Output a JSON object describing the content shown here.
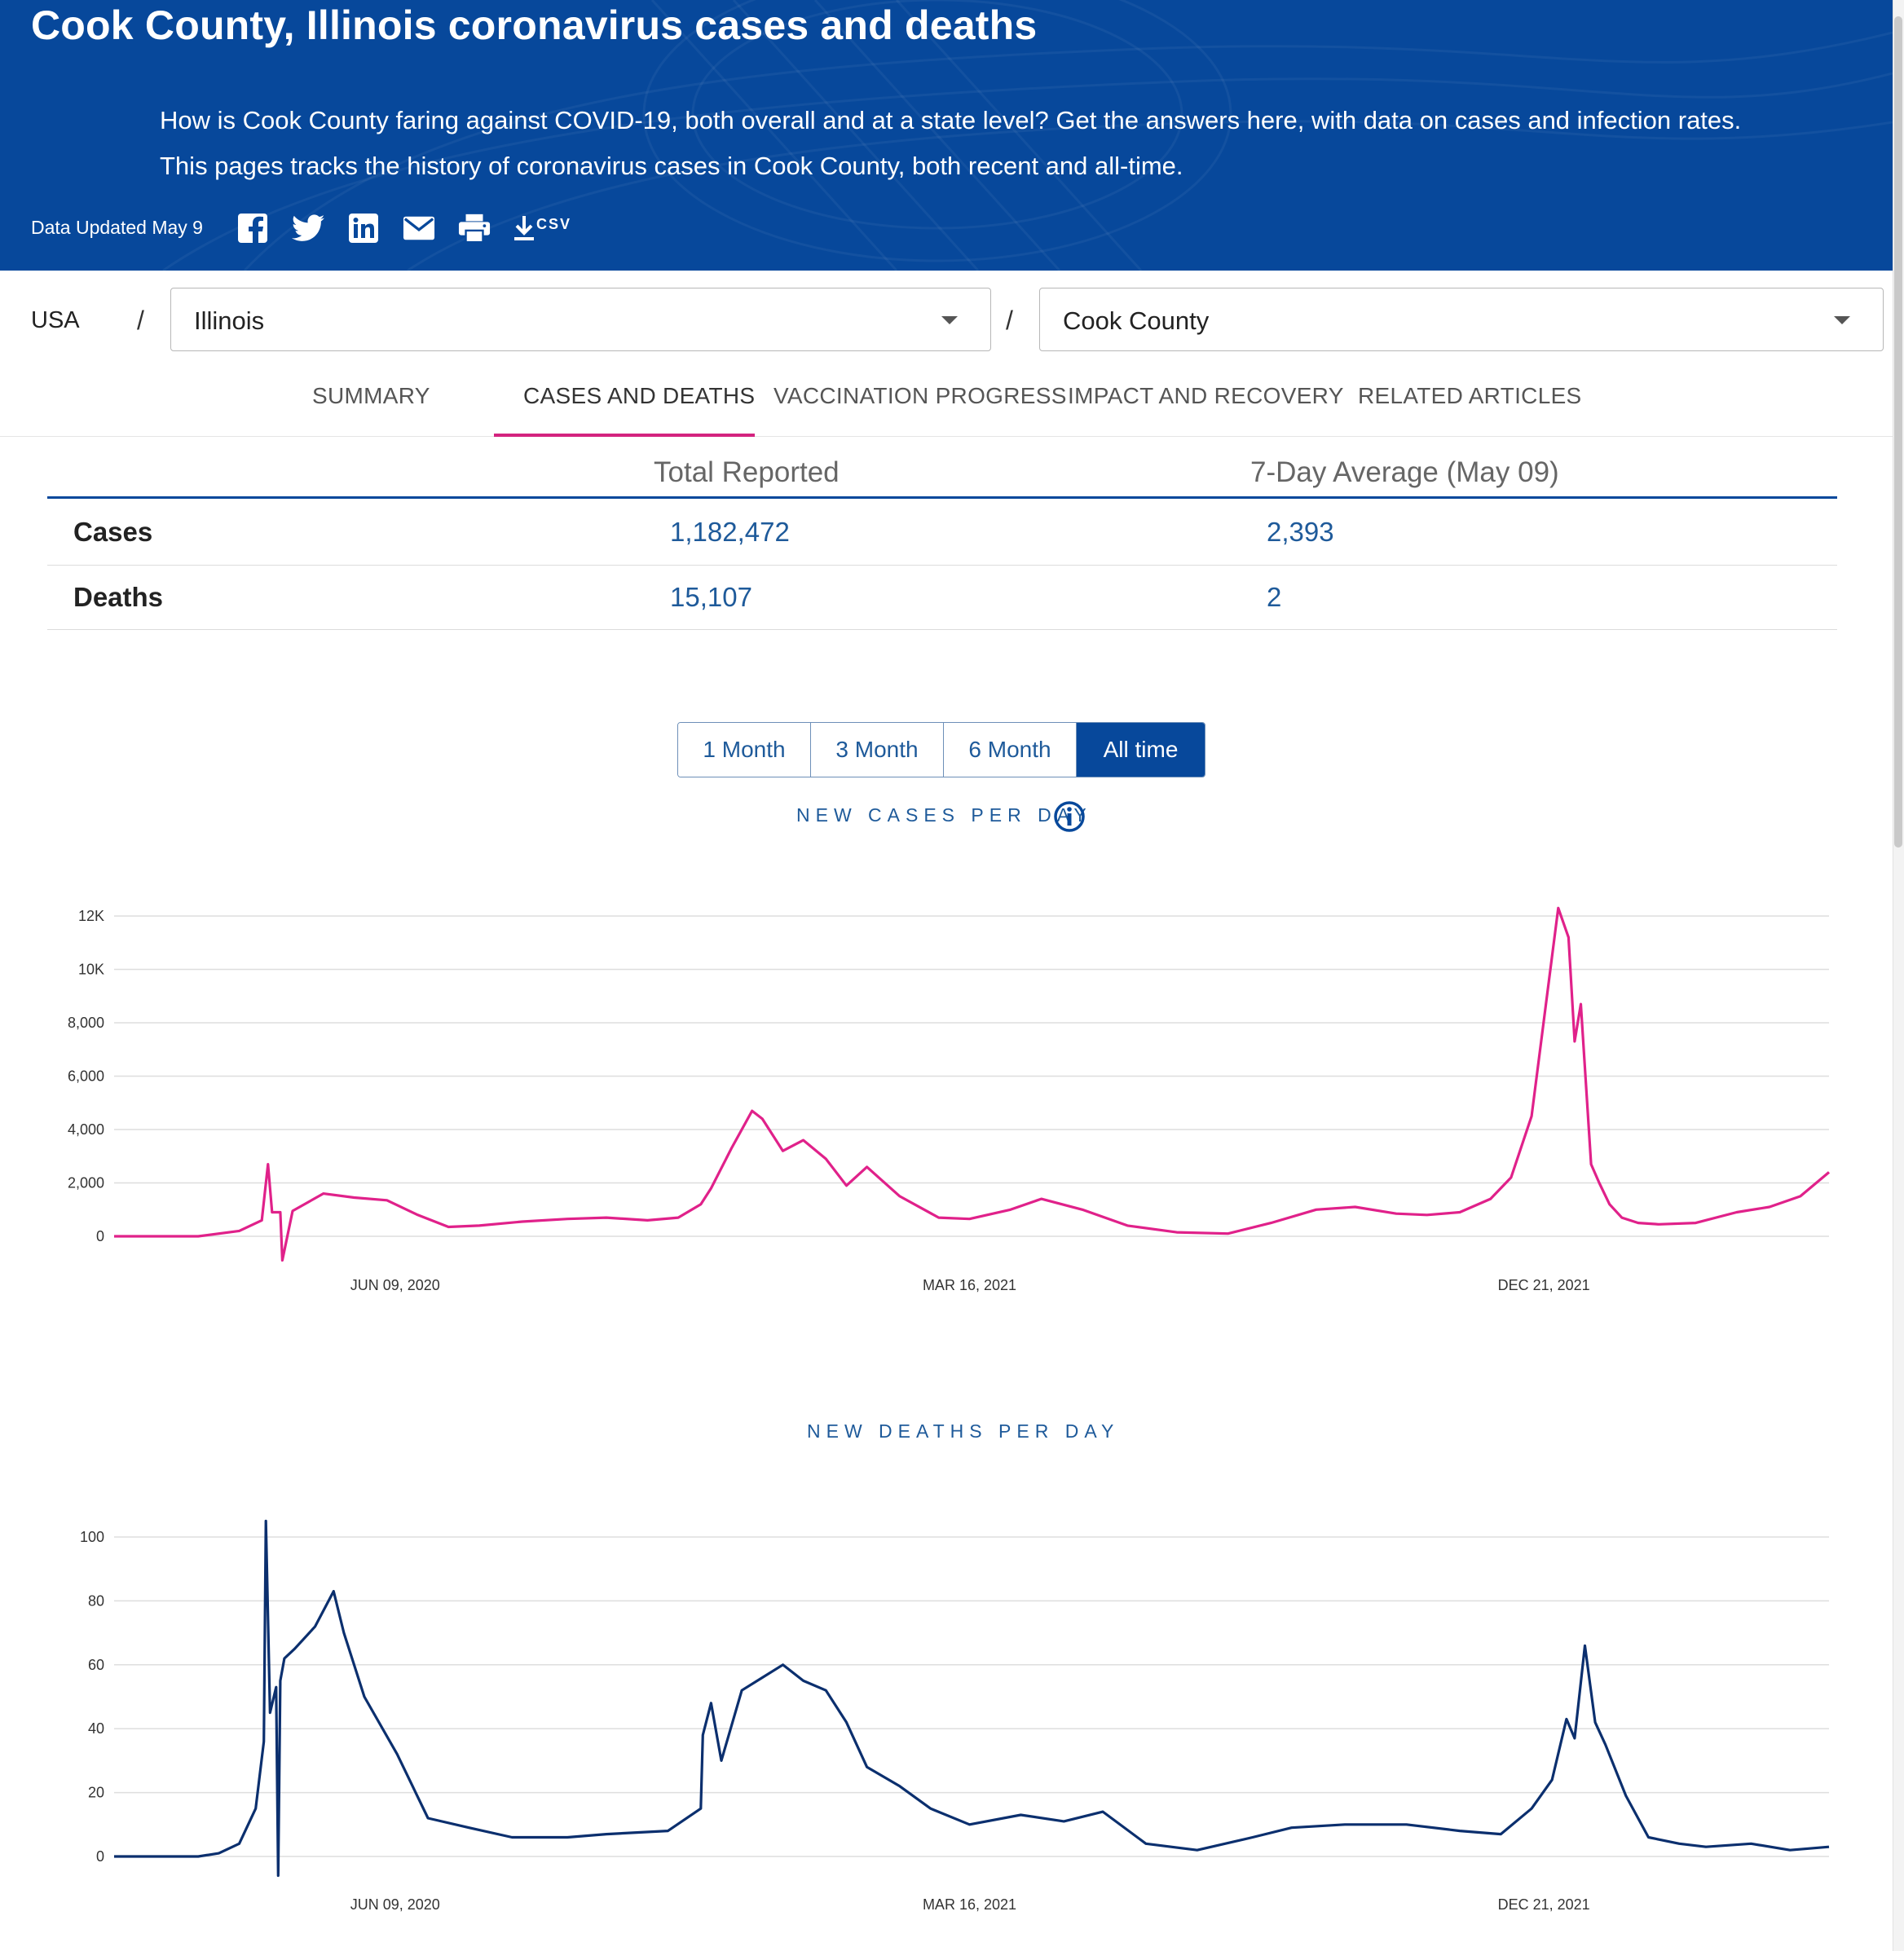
{
  "header": {
    "title": "Cook County, Illinois coronavirus cases and deaths",
    "lede": "How is Cook County faring against COVID-19, both overall and at a state level? Get the answers here, with data on cases and infection rates. This pages tracks the history of coronavirus cases in Cook County, both recent and all-time.",
    "updated": "Data Updated May 9",
    "share_icons": [
      "facebook-icon",
      "twitter-icon",
      "linkedin-icon",
      "email-icon",
      "print-icon",
      "download-icon"
    ],
    "csv_label": "CSV"
  },
  "location": {
    "country": "USA",
    "separator": "/",
    "state": "Illinois",
    "county": "Cook County"
  },
  "tabs": [
    {
      "label": "SUMMARY"
    },
    {
      "label": "CASES AND DEATHS",
      "active": true
    },
    {
      "label": "VACCINATION PROGRESS"
    },
    {
      "label": "IMPACT AND RECOVERY"
    },
    {
      "label": "RELATED ARTICLES"
    }
  ],
  "summary": {
    "col_total": "Total Reported",
    "col_avg": "7-Day Average (May 09)",
    "rows": [
      {
        "label": "Cases",
        "total": "1,182,472",
        "avg": "2,393"
      },
      {
        "label": "Deaths",
        "total": "15,107",
        "avg": "2"
      }
    ]
  },
  "range_buttons": [
    {
      "label": "1 Month"
    },
    {
      "label": "3 Month"
    },
    {
      "label": "6 Month"
    },
    {
      "label": "All time",
      "active": true
    }
  ],
  "colors": {
    "brand": "#07489b",
    "accent": "#d4237f",
    "cases_line": "#e0218a",
    "deaths_line": "#0b2f6e",
    "link": "#1e5a9a"
  },
  "chart_data": [
    {
      "type": "line",
      "title": "NEW CASES PER DAY",
      "ylim": [
        0,
        12000
      ],
      "yticks": [
        0,
        2000,
        4000,
        6000,
        8000,
        10000,
        12000
      ],
      "ytick_labels": [
        "0",
        "2,000",
        "4,000",
        "6,000",
        "8,000",
        "10K",
        "12K"
      ],
      "xticks": [
        {
          "label": "JUN 09, 2020",
          "date": "2020-06-09"
        },
        {
          "label": "MAR 16, 2021",
          "date": "2021-03-16"
        },
        {
          "label": "DEC 21, 2021",
          "date": "2021-12-21"
        }
      ],
      "grid": true,
      "x_dates": [
        "2020-01-24",
        "2020-03-05",
        "2020-03-25",
        "2020-04-05",
        "2020-04-08",
        "2020-04-10",
        "2020-04-14",
        "2020-04-15",
        "2020-04-20",
        "2020-05-05",
        "2020-05-20",
        "2020-06-05",
        "2020-06-20",
        "2020-07-05",
        "2020-07-20",
        "2020-08-10",
        "2020-09-01",
        "2020-09-20",
        "2020-10-10",
        "2020-10-25",
        "2020-11-05",
        "2020-11-10",
        "2020-11-20",
        "2020-11-30",
        "2020-12-05",
        "2020-12-15",
        "2020-12-25",
        "2021-01-05",
        "2021-01-15",
        "2021-01-25",
        "2021-02-10",
        "2021-03-01",
        "2021-03-16",
        "2021-04-05",
        "2021-04-20",
        "2021-05-10",
        "2021-06-01",
        "2021-06-25",
        "2021-07-20",
        "2021-08-10",
        "2021-09-01",
        "2021-09-20",
        "2021-10-10",
        "2021-10-25",
        "2021-11-10",
        "2021-11-25",
        "2021-12-05",
        "2021-12-15",
        "2021-12-22",
        "2021-12-28",
        "2022-01-02",
        "2022-01-05",
        "2022-01-08",
        "2022-01-13",
        "2022-01-17",
        "2022-01-22",
        "2022-01-28",
        "2022-02-05",
        "2022-02-15",
        "2022-03-05",
        "2022-03-25",
        "2022-04-10",
        "2022-04-25",
        "2022-05-09"
      ],
      "values": [
        0,
        0,
        200,
        600,
        2700,
        900,
        900,
        -900,
        950,
        1600,
        1450,
        1350,
        800,
        350,
        400,
        550,
        650,
        700,
        600,
        700,
        1200,
        1800,
        3300,
        4700,
        4400,
        3200,
        3600,
        2900,
        1900,
        2600,
        1500,
        700,
        650,
        1000,
        1400,
        1000,
        400,
        150,
        100,
        500,
        1000,
        1100,
        850,
        800,
        900,
        1400,
        2200,
        4500,
        8700,
        12300,
        11200,
        7300,
        8700,
        2700,
        2000,
        1200,
        700,
        500,
        450,
        500,
        900,
        1100,
        1500,
        2400
      ]
    },
    {
      "type": "line",
      "title": "NEW DEATHS PER DAY",
      "ylim": [
        0,
        105
      ],
      "yticks": [
        0,
        20,
        40,
        60,
        80,
        100
      ],
      "ytick_labels": [
        "0",
        "20",
        "40",
        "60",
        "80",
        "100"
      ],
      "xticks": [
        {
          "label": "JUN 09, 2020",
          "date": "2020-06-09"
        },
        {
          "label": "MAR 16, 2021",
          "date": "2021-03-16"
        },
        {
          "label": "DEC 21, 2021",
          "date": "2021-12-21"
        }
      ],
      "grid": true,
      "x_dates": [
        "2020-01-24",
        "2020-03-05",
        "2020-03-15",
        "2020-03-25",
        "2020-04-02",
        "2020-04-06",
        "2020-04-07",
        "2020-04-09",
        "2020-04-12",
        "2020-04-13",
        "2020-04-14",
        "2020-04-16",
        "2020-04-21",
        "2020-05-01",
        "2020-05-10",
        "2020-05-15",
        "2020-05-25",
        "2020-06-10",
        "2020-06-25",
        "2020-07-15",
        "2020-08-05",
        "2020-09-01",
        "2020-09-20",
        "2020-10-20",
        "2020-11-05",
        "2020-11-06",
        "2020-11-10",
        "2020-11-15",
        "2020-11-25",
        "2020-12-05",
        "2020-12-15",
        "2020-12-25",
        "2021-01-05",
        "2021-01-15",
        "2021-01-25",
        "2021-02-10",
        "2021-02-25",
        "2021-03-16",
        "2021-04-10",
        "2021-05-01",
        "2021-05-20",
        "2021-06-10",
        "2021-07-05",
        "2021-08-01",
        "2021-08-20",
        "2021-09-15",
        "2021-10-15",
        "2021-11-10",
        "2021-11-30",
        "2021-12-15",
        "2021-12-25",
        "2022-01-01",
        "2022-01-05",
        "2022-01-10",
        "2022-01-15",
        "2022-01-20",
        "2022-01-30",
        "2022-02-10",
        "2022-02-25",
        "2022-03-10",
        "2022-04-01",
        "2022-04-20",
        "2022-05-09"
      ],
      "values": [
        0,
        0,
        1,
        4,
        15,
        36,
        105,
        45,
        53,
        -6,
        55,
        62,
        65,
        72,
        83,
        70,
        50,
        32,
        12,
        9,
        6,
        6,
        7,
        8,
        15,
        38,
        48,
        30,
        52,
        56,
        60,
        55,
        52,
        42,
        28,
        22,
        15,
        10,
        13,
        11,
        14,
        4,
        2,
        6,
        9,
        10,
        10,
        8,
        7,
        15,
        24,
        43,
        37,
        66,
        42,
        35,
        19,
        6,
        4,
        3,
        4,
        2,
        3
      ]
    }
  ]
}
